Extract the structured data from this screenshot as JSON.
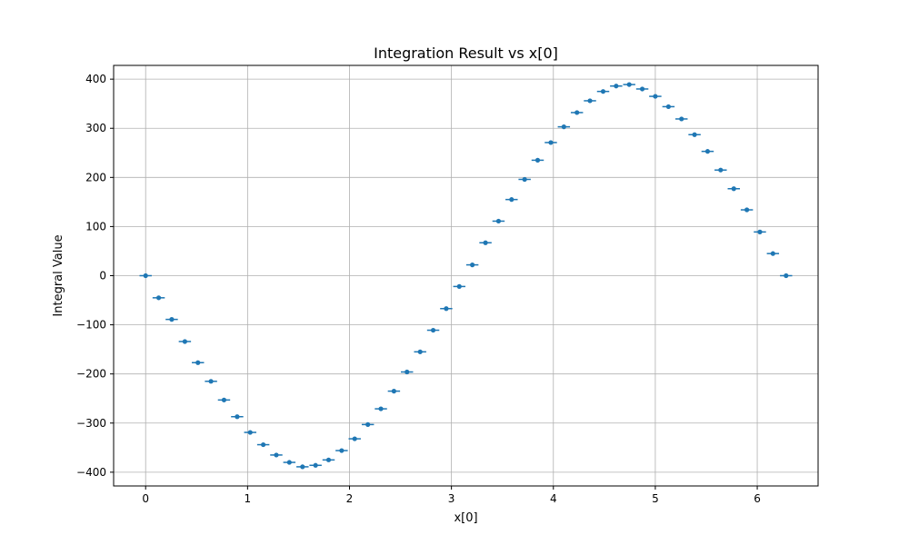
{
  "chart_data": {
    "type": "scatter",
    "title": "Integration Result vs x[0]",
    "xlabel": "x[0]",
    "ylabel": "Integral Value",
    "xlim": [
      -0.314,
      6.597
    ],
    "ylim": [
      -428,
      428
    ],
    "xticks": [
      0,
      1,
      2,
      3,
      4,
      5,
      6
    ],
    "yticks": [
      -400,
      -300,
      -200,
      -100,
      0,
      100,
      200,
      300,
      400
    ],
    "grid": true,
    "marker_color": "#1f77b4",
    "x_error_halfwidth": 0.06,
    "series": [
      {
        "x": [
          0.0,
          0.128,
          0.256,
          0.385,
          0.513,
          0.641,
          0.769,
          0.898,
          1.026,
          1.154,
          1.282,
          1.41,
          1.539,
          1.667,
          1.795,
          1.923,
          2.051,
          2.18,
          2.308,
          2.436,
          2.564,
          2.693,
          2.821,
          2.949,
          3.077,
          3.205,
          3.334,
          3.462,
          3.59,
          3.718,
          3.846,
          3.975,
          4.103,
          4.231,
          4.359,
          4.488,
          4.616,
          4.744,
          4.872,
          5.0,
          5.129,
          5.257,
          5.385,
          5.513,
          5.641,
          5.77,
          5.898,
          6.026,
          6.154,
          6.283
        ],
        "y": [
          0,
          -45,
          -89,
          -134,
          -177,
          -215,
          -253,
          -287,
          -319,
          -344,
          -365,
          -380,
          -389,
          -386,
          -375,
          -356,
          -332,
          -303,
          -271,
          -235,
          -196,
          -155,
          -111,
          -67,
          -22,
          22,
          67,
          111,
          155,
          196,
          235,
          271,
          303,
          332,
          356,
          375,
          386,
          389,
          380,
          365,
          344,
          319,
          287,
          253,
          215,
          177,
          134,
          89,
          45,
          0
        ]
      }
    ]
  }
}
